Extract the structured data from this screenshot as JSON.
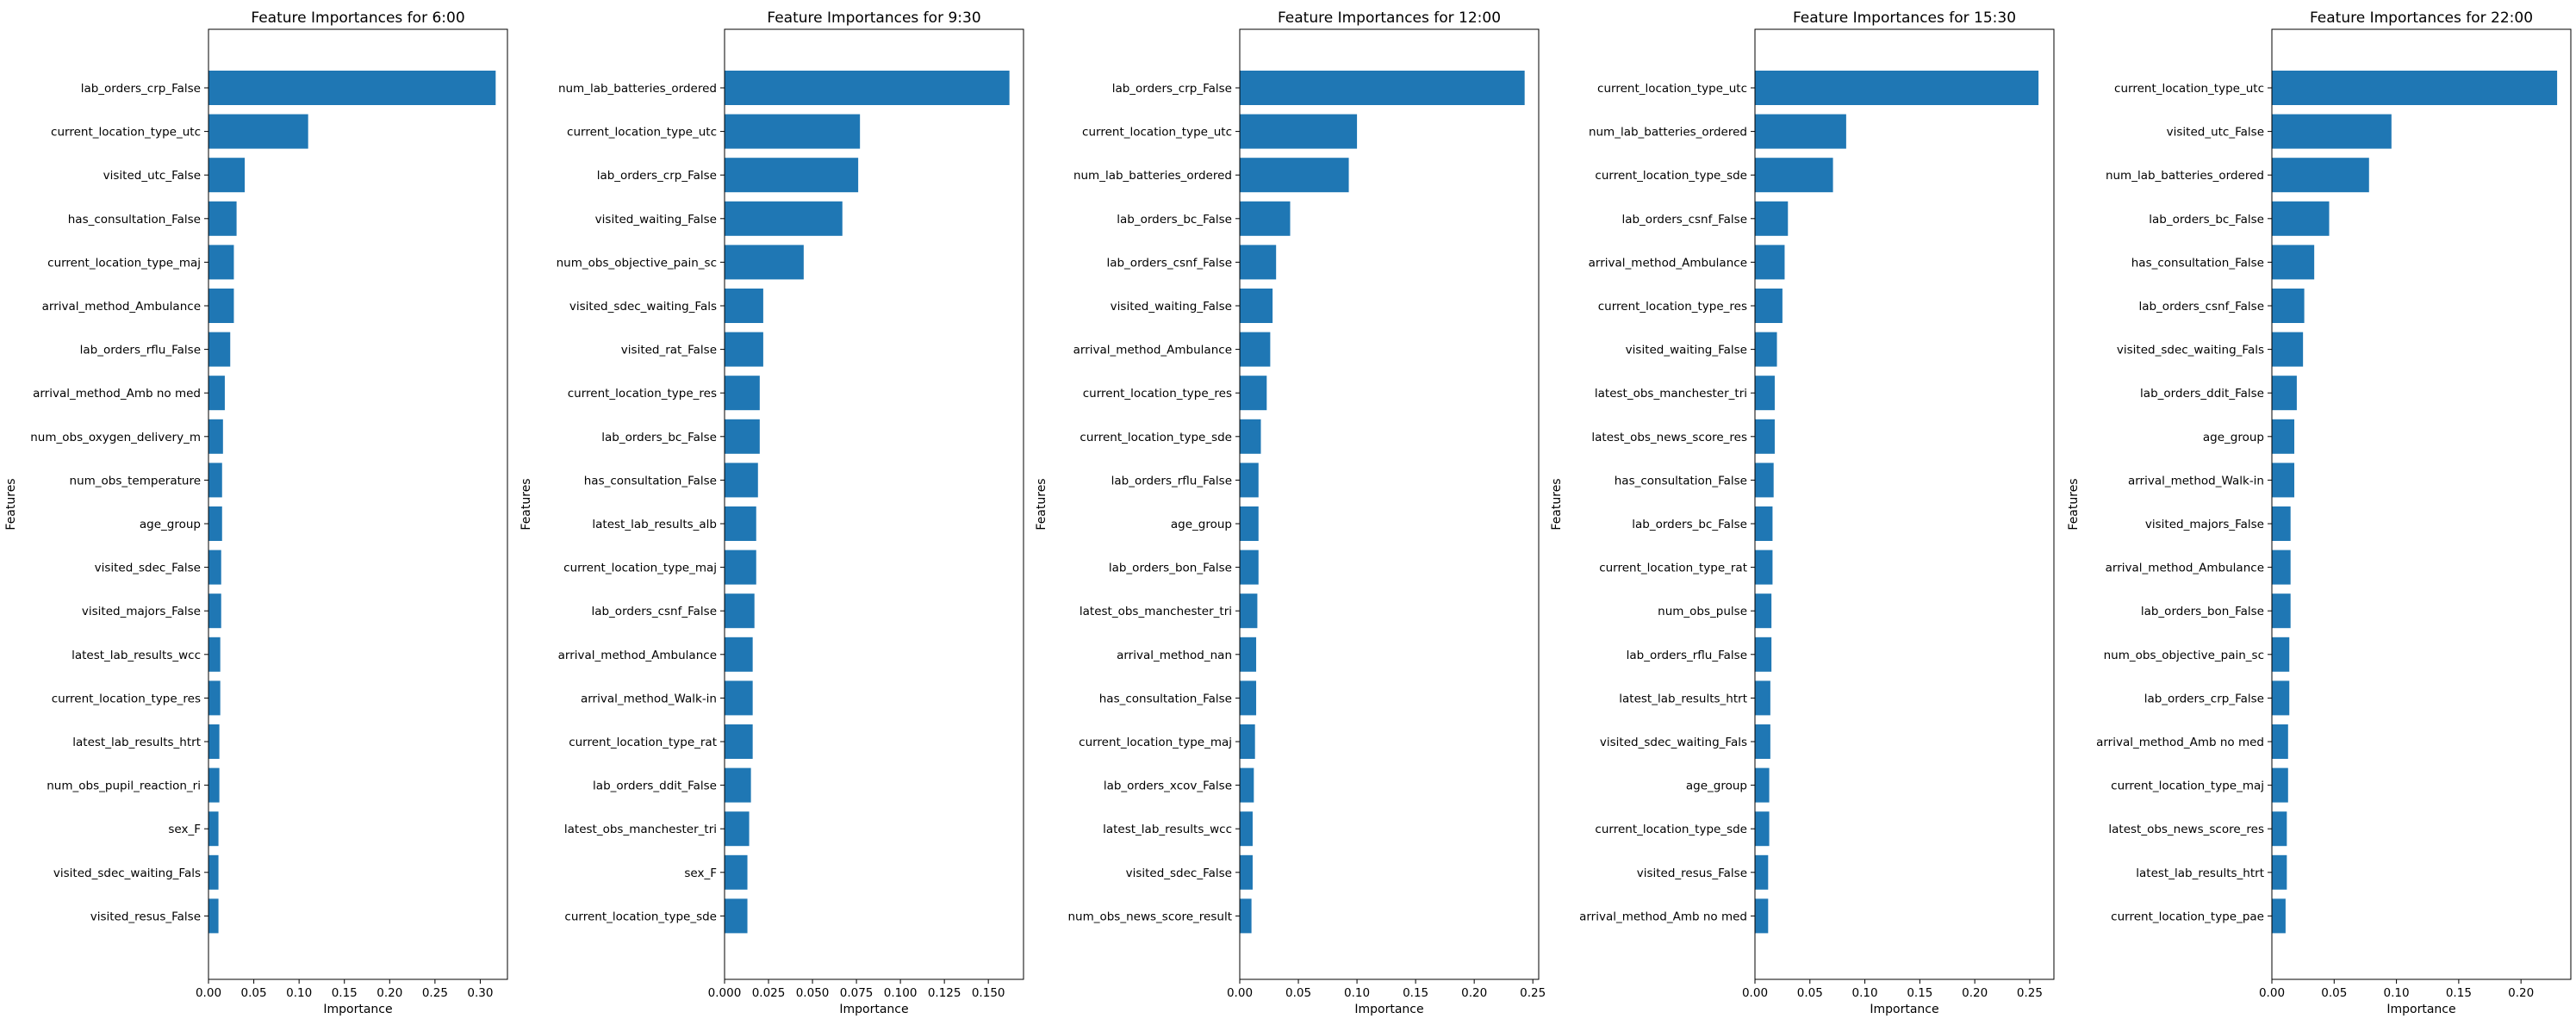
{
  "chart_data": [
    {
      "type": "bar",
      "orientation": "horizontal",
      "title": "Feature Importances for 6:00",
      "xlabel": "Importance",
      "ylabel": "Features",
      "xlim": [
        0,
        0.33
      ],
      "xticks": [
        "0.00",
        "0.05",
        "0.10",
        "0.15",
        "0.20",
        "0.25",
        "0.30"
      ],
      "color": "#1f77b4",
      "categories": [
        "lab_orders_crp_False",
        "current_location_type_utc",
        "visited_utc_False",
        "has_consultation_False",
        "current_location_type_maj",
        "arrival_method_Ambulance",
        "lab_orders_rflu_False",
        "arrival_method_Amb no med",
        "num_obs_oxygen_delivery_m",
        "num_obs_temperature",
        "age_group",
        "visited_sdec_False",
        "visited_majors_False",
        "latest_lab_results_wcc",
        "current_location_type_res",
        "latest_lab_results_htrt",
        "num_obs_pupil_reaction_ri",
        "sex_F",
        "visited_sdec_waiting_Fals",
        "visited_resus_False"
      ],
      "values": [
        0.317,
        0.11,
        0.04,
        0.031,
        0.028,
        0.028,
        0.024,
        0.018,
        0.016,
        0.015,
        0.015,
        0.014,
        0.014,
        0.013,
        0.013,
        0.012,
        0.012,
        0.011,
        0.011,
        0.011
      ]
    },
    {
      "type": "bar",
      "orientation": "horizontal",
      "title": "Feature Importances for 9:30",
      "xlabel": "Importance",
      "ylabel": "Features",
      "xlim": [
        0,
        0.17
      ],
      "xticks": [
        "0.000",
        "0.025",
        "0.050",
        "0.075",
        "0.100",
        "0.125",
        "0.150"
      ],
      "color": "#1f77b4",
      "categories": [
        "num_lab_batteries_ordered",
        "current_location_type_utc",
        "lab_orders_crp_False",
        "visited_waiting_False",
        "num_obs_objective_pain_sc",
        "visited_sdec_waiting_Fals",
        "visited_rat_False",
        "current_location_type_res",
        "lab_orders_bc_False",
        "has_consultation_False",
        "latest_lab_results_alb",
        "current_location_type_maj",
        "lab_orders_csnf_False",
        "arrival_method_Ambulance",
        "arrival_method_Walk-in",
        "current_location_type_rat",
        "lab_orders_ddit_False",
        "latest_obs_manchester_tri",
        "sex_F",
        "current_location_type_sde"
      ],
      "values": [
        0.162,
        0.077,
        0.076,
        0.067,
        0.045,
        0.022,
        0.022,
        0.02,
        0.02,
        0.019,
        0.018,
        0.018,
        0.017,
        0.016,
        0.016,
        0.016,
        0.015,
        0.014,
        0.013,
        0.013
      ]
    },
    {
      "type": "bar",
      "orientation": "horizontal",
      "title": "Feature Importances for 12:00",
      "xlabel": "Importance",
      "ylabel": "Features",
      "xlim": [
        0,
        0.255
      ],
      "xticks": [
        "0.00",
        "0.05",
        "0.10",
        "0.15",
        "0.20",
        "0.25"
      ],
      "color": "#1f77b4",
      "categories": [
        "lab_orders_crp_False",
        "current_location_type_utc",
        "num_lab_batteries_ordered",
        "lab_orders_bc_False",
        "lab_orders_csnf_False",
        "visited_waiting_False",
        "arrival_method_Ambulance",
        "current_location_type_res",
        "current_location_type_sde",
        "lab_orders_rflu_False",
        "age_group",
        "lab_orders_bon_False",
        "latest_obs_manchester_tri",
        "arrival_method_nan",
        "has_consultation_False",
        "current_location_type_maj",
        "lab_orders_xcov_False",
        "latest_lab_results_wcc",
        "visited_sdec_False",
        "num_obs_news_score_result"
      ],
      "values": [
        0.243,
        0.1,
        0.093,
        0.043,
        0.031,
        0.028,
        0.026,
        0.023,
        0.018,
        0.016,
        0.016,
        0.016,
        0.015,
        0.014,
        0.014,
        0.013,
        0.012,
        0.011,
        0.011,
        0.01
      ]
    },
    {
      "type": "bar",
      "orientation": "horizontal",
      "title": "Feature Importances for 15:30",
      "xlabel": "Importance",
      "ylabel": "Features",
      "xlim": [
        0,
        0.272
      ],
      "xticks": [
        "0.00",
        "0.05",
        "0.10",
        "0.15",
        "0.20",
        "0.25"
      ],
      "color": "#1f77b4",
      "categories": [
        "current_location_type_utc",
        "num_lab_batteries_ordered",
        "current_location_type_sde",
        "lab_orders_csnf_False",
        "arrival_method_Ambulance",
        "current_location_type_res",
        "visited_waiting_False",
        "latest_obs_manchester_tri",
        "latest_obs_news_score_res",
        "has_consultation_False",
        "lab_orders_bc_False",
        "current_location_type_rat",
        "num_obs_pulse",
        "lab_orders_rflu_False",
        "latest_lab_results_htrt",
        "visited_sdec_waiting_Fals",
        "age_group",
        "current_location_type_sde",
        "visited_resus_False",
        "arrival_method_Amb no med"
      ],
      "values": [
        0.258,
        0.083,
        0.071,
        0.03,
        0.027,
        0.025,
        0.02,
        0.018,
        0.018,
        0.017,
        0.016,
        0.016,
        0.015,
        0.015,
        0.014,
        0.014,
        0.013,
        0.013,
        0.012,
        0.012
      ]
    },
    {
      "type": "bar",
      "orientation": "horizontal",
      "title": "Feature Importances for 22:00",
      "xlabel": "Importance",
      "ylabel": "Features",
      "xlim": [
        0,
        0.24
      ],
      "xticks": [
        "0.00",
        "0.05",
        "0.10",
        "0.15",
        "0.20"
      ],
      "color": "#1f77b4",
      "categories": [
        "current_location_type_utc",
        "visited_utc_False",
        "num_lab_batteries_ordered",
        "lab_orders_bc_False",
        "has_consultation_False",
        "lab_orders_csnf_False",
        "visited_sdec_waiting_Fals",
        "lab_orders_ddit_False",
        "age_group",
        "arrival_method_Walk-in",
        "visited_majors_False",
        "arrival_method_Ambulance",
        "lab_orders_bon_False",
        "num_obs_objective_pain_sc",
        "lab_orders_crp_False",
        "arrival_method_Amb no med",
        "current_location_type_maj",
        "latest_obs_news_score_res",
        "latest_lab_results_htrt",
        "current_location_type_pae"
      ],
      "values": [
        0.229,
        0.096,
        0.078,
        0.046,
        0.034,
        0.026,
        0.025,
        0.02,
        0.018,
        0.018,
        0.015,
        0.015,
        0.015,
        0.014,
        0.014,
        0.013,
        0.013,
        0.012,
        0.012,
        0.011
      ]
    }
  ]
}
